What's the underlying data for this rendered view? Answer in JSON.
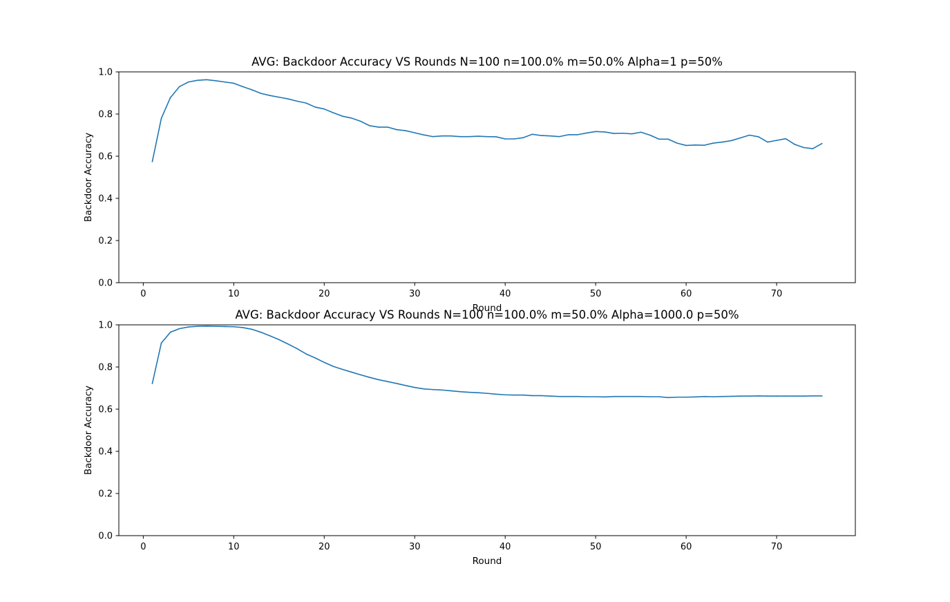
{
  "chart_data": [
    {
      "type": "line",
      "title": "AVG: Backdoor Accuracy VS Rounds N=100 n=100.0% m=50.0% Alpha=1 p=50%",
      "xlabel": "Round",
      "ylabel": "Backdoor Accuracy",
      "xlim": [
        -2.7,
        78.7
      ],
      "ylim": [
        0.0,
        1.0
      ],
      "xticks": [
        "0",
        "10",
        "20",
        "30",
        "40",
        "50",
        "60",
        "70"
      ],
      "yticks": [
        "0.0",
        "0.2",
        "0.4",
        "0.6",
        "0.8",
        "1.0"
      ],
      "grid": false,
      "color": "#1f77b4",
      "x": [
        1,
        2,
        3,
        4,
        5,
        6,
        7,
        8,
        9,
        10,
        11,
        12,
        13,
        14,
        15,
        16,
        17,
        18,
        19,
        20,
        21,
        22,
        23,
        24,
        25,
        26,
        27,
        28,
        29,
        30,
        31,
        32,
        33,
        34,
        35,
        36,
        37,
        38,
        39,
        40,
        41,
        42,
        43,
        44,
        45,
        46,
        47,
        48,
        49,
        50,
        51,
        52,
        53,
        54,
        55,
        56,
        57,
        58,
        59,
        60,
        61,
        62,
        63,
        64,
        65,
        66,
        67,
        68,
        69,
        70,
        71,
        72,
        73,
        74,
        75
      ],
      "series": [
        {
          "values": [
            0.575,
            0.78,
            0.878,
            0.93,
            0.952,
            0.96,
            0.963,
            0.958,
            0.952,
            0.946,
            0.93,
            0.915,
            0.898,
            0.888,
            0.88,
            0.872,
            0.861,
            0.852,
            0.833,
            0.824,
            0.806,
            0.79,
            0.781,
            0.766,
            0.745,
            0.738,
            0.738,
            0.726,
            0.721,
            0.711,
            0.701,
            0.693,
            0.696,
            0.696,
            0.693,
            0.693,
            0.695,
            0.693,
            0.692,
            0.682,
            0.682,
            0.688,
            0.704,
            0.698,
            0.696,
            0.693,
            0.702,
            0.702,
            0.71,
            0.717,
            0.715,
            0.708,
            0.709,
            0.706,
            0.714,
            0.7,
            0.681,
            0.681,
            0.662,
            0.651,
            0.653,
            0.652,
            0.662,
            0.667,
            0.674,
            0.687,
            0.7,
            0.692,
            0.667,
            0.675,
            0.683,
            0.656,
            0.641,
            0.636,
            0.66
          ]
        }
      ]
    },
    {
      "type": "line",
      "title": "AVG: Backdoor Accuracy VS Rounds N=100 n=100.0% m=50.0% Alpha=1000.0 p=50%",
      "xlabel": "Round",
      "ylabel": "Backdoor Accuracy",
      "xlim": [
        -2.7,
        78.7
      ],
      "ylim": [
        0.0,
        1.0
      ],
      "xticks": [
        "0",
        "10",
        "20",
        "30",
        "40",
        "50",
        "60",
        "70"
      ],
      "yticks": [
        "0.0",
        "0.2",
        "0.4",
        "0.6",
        "0.8",
        "1.0"
      ],
      "grid": false,
      "color": "#1f77b4",
      "x": [
        1,
        2,
        3,
        4,
        5,
        6,
        7,
        8,
        9,
        10,
        11,
        12,
        13,
        14,
        15,
        16,
        17,
        18,
        19,
        20,
        21,
        22,
        23,
        24,
        25,
        26,
        27,
        28,
        29,
        30,
        31,
        32,
        33,
        34,
        35,
        36,
        37,
        38,
        39,
        40,
        41,
        42,
        43,
        44,
        45,
        46,
        47,
        48,
        49,
        50,
        51,
        52,
        53,
        54,
        55,
        56,
        57,
        58,
        59,
        60,
        61,
        62,
        63,
        64,
        65,
        66,
        67,
        68,
        69,
        70,
        71,
        72,
        73,
        74,
        75
      ],
      "series": [
        {
          "values": [
            0.722,
            0.914,
            0.965,
            0.982,
            0.99,
            0.993,
            0.994,
            0.993,
            0.992,
            0.991,
            0.987,
            0.979,
            0.965,
            0.948,
            0.93,
            0.909,
            0.887,
            0.862,
            0.843,
            0.822,
            0.803,
            0.789,
            0.776,
            0.763,
            0.751,
            0.74,
            0.731,
            0.722,
            0.712,
            0.703,
            0.696,
            0.693,
            0.691,
            0.687,
            0.683,
            0.68,
            0.678,
            0.675,
            0.671,
            0.668,
            0.667,
            0.667,
            0.664,
            0.664,
            0.662,
            0.66,
            0.66,
            0.66,
            0.659,
            0.659,
            0.658,
            0.66,
            0.66,
            0.66,
            0.66,
            0.659,
            0.659,
            0.655,
            0.657,
            0.657,
            0.658,
            0.66,
            0.659,
            0.66,
            0.661,
            0.662,
            0.662,
            0.663,
            0.662,
            0.662,
            0.662,
            0.662,
            0.662,
            0.663,
            0.663
          ]
        }
      ]
    }
  ]
}
